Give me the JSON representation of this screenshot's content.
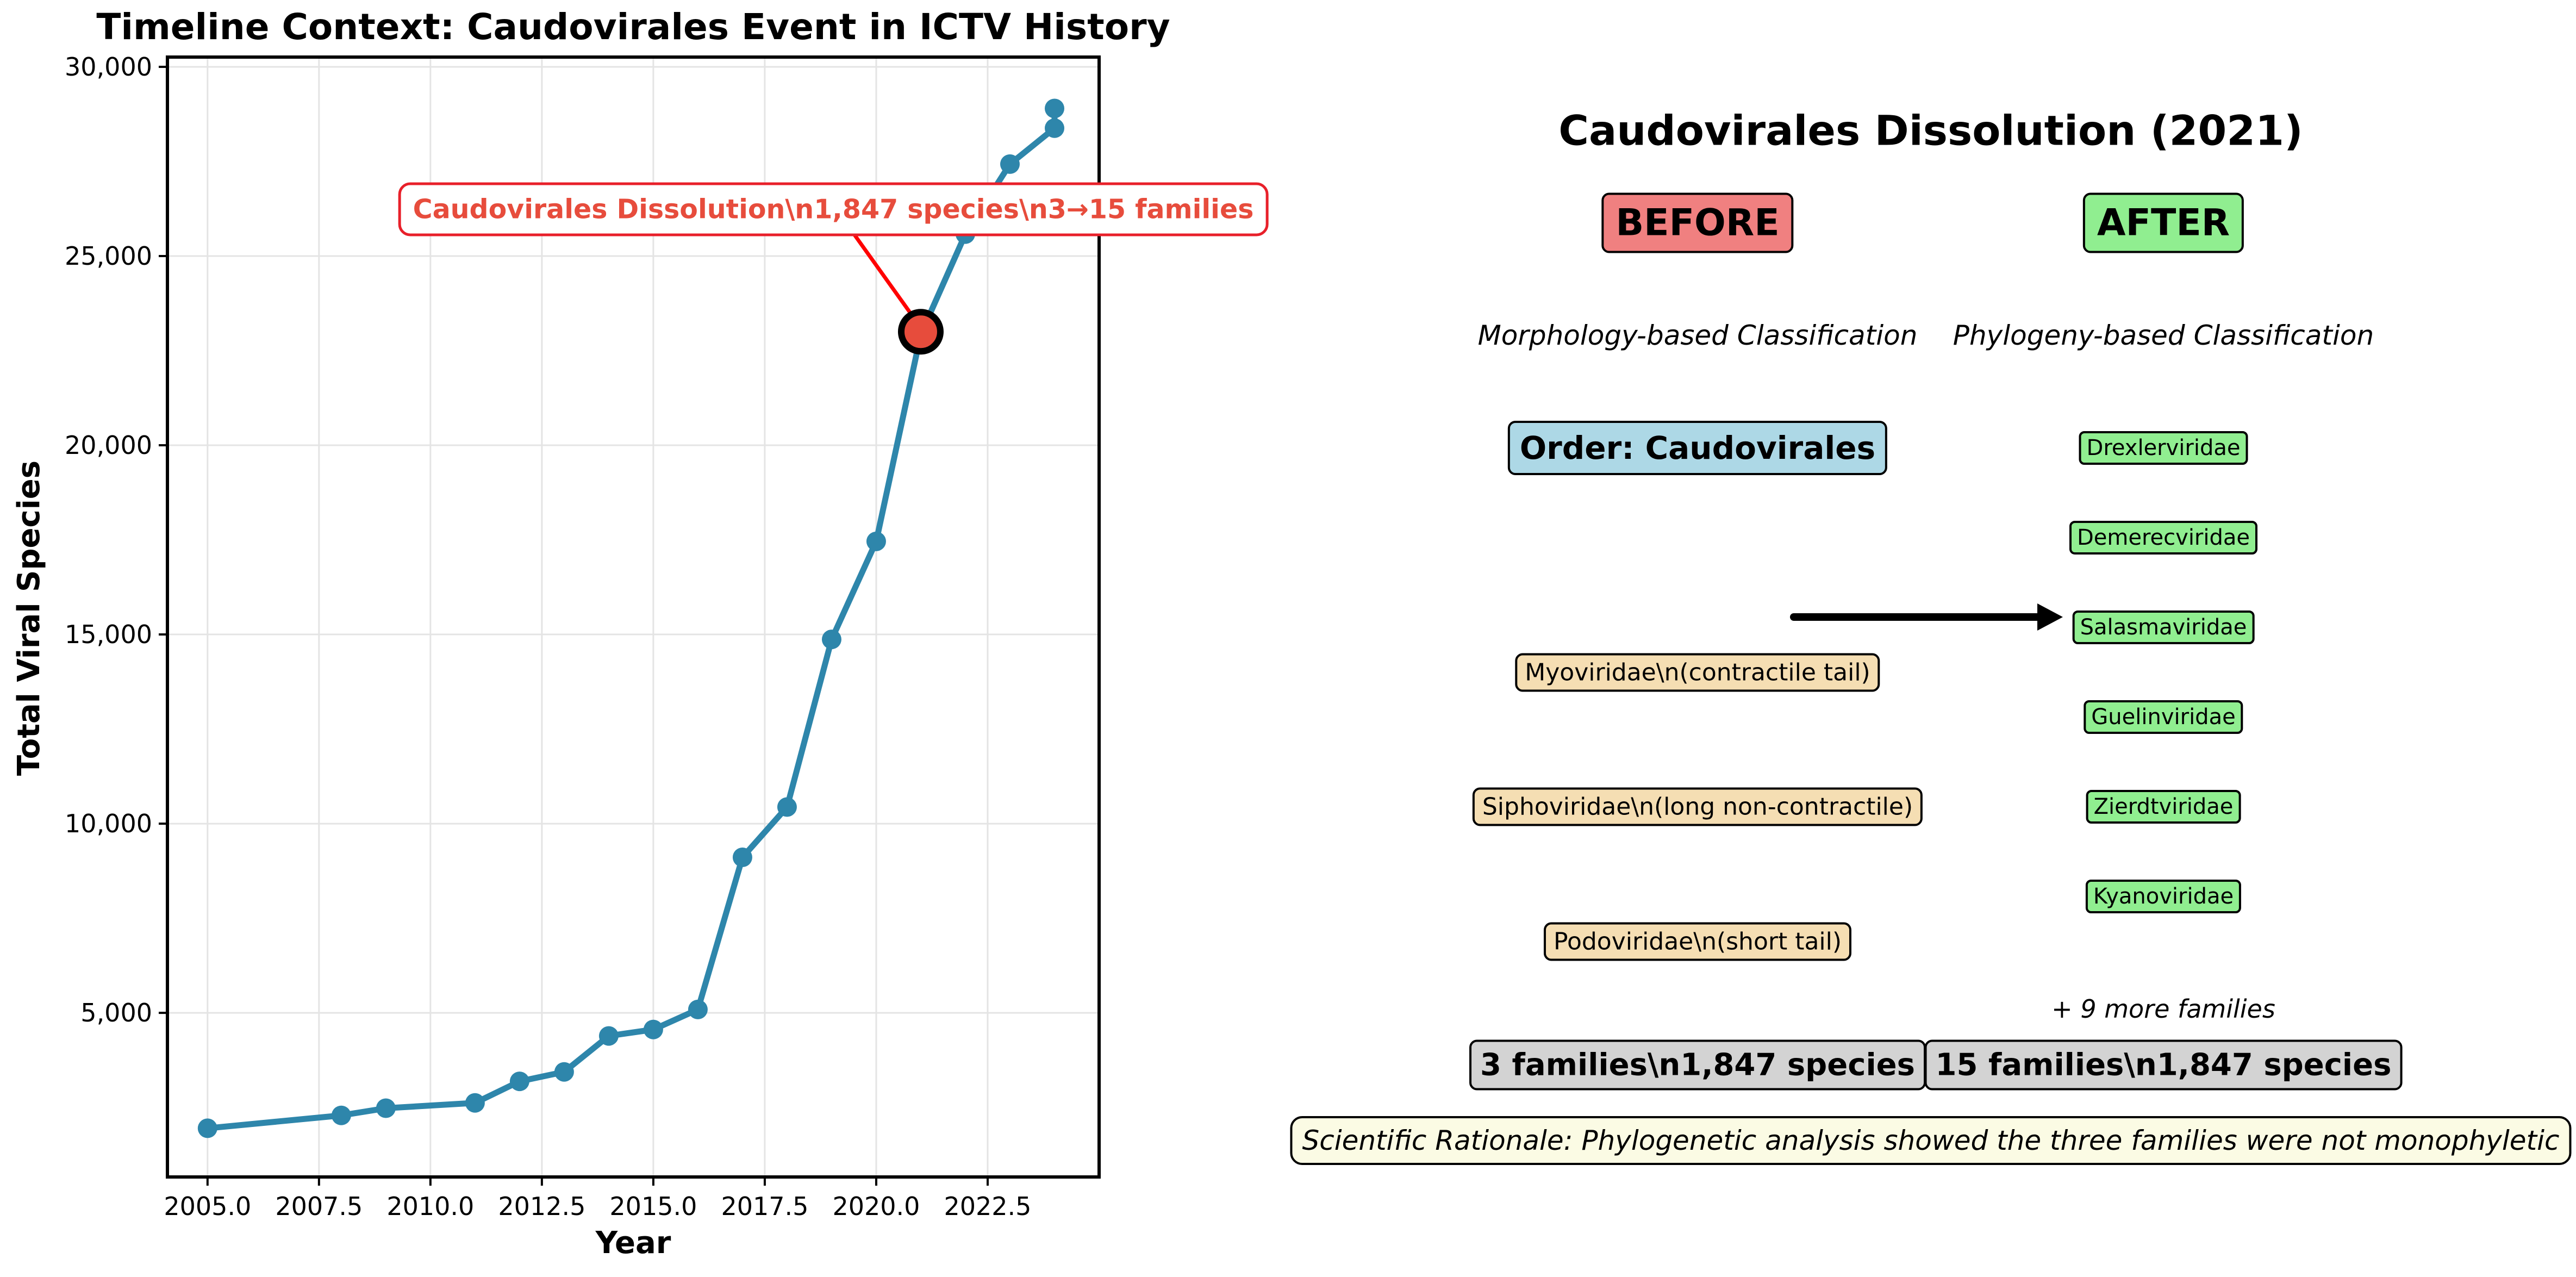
{
  "chart_data": {
    "type": "line",
    "title": "Timeline Context: Caudovirales Event in ICTV History",
    "xlabel": "Year",
    "ylabel": "Total Viral Species",
    "xlim": [
      2004.1,
      2025.0
    ],
    "ylim": [
      663,
      30258
    ],
    "xticks": [
      2005.0,
      2007.5,
      2010.0,
      2012.5,
      2015.0,
      2017.5,
      2020.0,
      2022.5
    ],
    "xtick_labels": [
      "2005.0",
      "2007.5",
      "2010.0",
      "2012.5",
      "2015.0",
      "2017.5",
      "2020.0",
      "2022.5"
    ],
    "yticks": [
      5000,
      10000,
      15000,
      20000,
      25000,
      30000
    ],
    "ytick_labels": [
      "5,000",
      "10,000",
      "15,000",
      "20,000",
      "25,000",
      "30,000"
    ],
    "grid": true,
    "series": [
      {
        "color": "#2e86ab",
        "x": [
          2005,
          2008,
          2009,
          2011,
          2012,
          2013,
          2014,
          2015,
          2016,
          2017,
          2018,
          2019,
          2020,
          2021,
          2022,
          2023,
          2024,
          2024
        ],
        "y": [
          1950,
          2290,
          2480,
          2620,
          3190,
          3440,
          4390,
          4560,
          5090,
          9110,
          10440,
          14870,
          17460,
          22930,
          25580,
          27430,
          28380,
          28900
        ]
      }
    ],
    "highlight": {
      "x": 2021,
      "y": 23000,
      "color": "#e74c3c"
    },
    "annotation": {
      "text": "Caudovirales Dissolution\\n1,847 species\\n3→15 families",
      "color": "#e74c3c"
    }
  },
  "diagram": {
    "title": "Caudovirales Dissolution (2021)",
    "before_label": "BEFORE",
    "after_label": "AFTER",
    "before_subtitle": "Morphology-based Classification",
    "after_subtitle": "Phylogeny-based Classification",
    "order_label": "Order: Caudovirales",
    "old_families": [
      "Myoviridae\\n(contractile tail)",
      "Siphoviridae\\n(long non-contractile)",
      "Podoviridae\\n(short tail)"
    ],
    "new_families": [
      "Drexlerviridae",
      "Demerecviridae",
      "Salasmaviridae",
      "Guelinviridae",
      "Zierdtviridae",
      "Kyanoviridae"
    ],
    "more_families": "+ 9 more families",
    "before_summary": "3 families\\n1,847 species",
    "after_summary": "15 families\\n1,847 species",
    "rationale": "Scientific Rationale: Phylogenetic analysis showed the three families were not monophyletic",
    "colors": {
      "before": "#f08080",
      "after": "#90ee90",
      "order": "#add8e6",
      "old_family": "#f5deb3",
      "summary": "#d3d3d3",
      "rationale": "#fbfbe4"
    }
  }
}
